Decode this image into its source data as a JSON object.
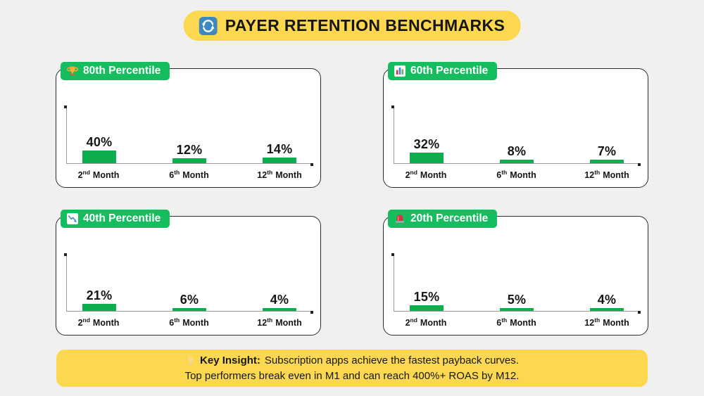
{
  "colors": {
    "background": "#F0F0EE",
    "yellow": "#FBD84F",
    "badge_green": "#15BD5F",
    "bar_green": "#0CAE4E",
    "card_border": "#2B2B2B",
    "axis": "#9B9B9B",
    "text": "#161616"
  },
  "header": {
    "title": "PAYER RETENTION BENCHMARKS",
    "icon": "counterclockwise-arrows-icon"
  },
  "panels": [
    {
      "icon": "trophy-icon",
      "title": "80th Percentile",
      "bars": [
        {
          "value": 40,
          "value_label": "40%",
          "month_number": "2",
          "month_ordinal": "nd",
          "month_word": "Month"
        },
        {
          "value": 12,
          "value_label": "12%",
          "month_number": "6",
          "month_ordinal": "th",
          "month_word": "Month"
        },
        {
          "value": 14,
          "value_label": "14%",
          "month_number": "12",
          "month_ordinal": "th",
          "month_word": "Month"
        }
      ]
    },
    {
      "icon": "bar-chart-icon",
      "title": "60th Percentile",
      "bars": [
        {
          "value": 32,
          "value_label": "32%",
          "month_number": "2",
          "month_ordinal": "nd",
          "month_word": "Month"
        },
        {
          "value": 8,
          "value_label": "8%",
          "month_number": "6",
          "month_ordinal": "th",
          "month_word": "Month"
        },
        {
          "value": 7,
          "value_label": "7%",
          "month_number": "12",
          "month_ordinal": "th",
          "month_word": "Month"
        }
      ]
    },
    {
      "icon": "chart-decreasing-icon",
      "title": "40th Percentile",
      "bars": [
        {
          "value": 21,
          "value_label": "21%",
          "month_number": "2",
          "month_ordinal": "nd",
          "month_word": "Month"
        },
        {
          "value": 6,
          "value_label": "6%",
          "month_number": "6",
          "month_ordinal": "th",
          "month_word": "Month"
        },
        {
          "value": 4,
          "value_label": "4%",
          "month_number": "12",
          "month_ordinal": "th",
          "month_word": "Month"
        }
      ]
    },
    {
      "icon": "police-light-icon",
      "title": "20th Percentile",
      "bars": [
        {
          "value": 15,
          "value_label": "15%",
          "month_number": "2",
          "month_ordinal": "nd",
          "month_word": "Month"
        },
        {
          "value": 5,
          "value_label": "5%",
          "month_number": "6",
          "month_ordinal": "th",
          "month_word": "Month"
        },
        {
          "value": 4,
          "value_label": "4%",
          "month_number": "12",
          "month_ordinal": "th",
          "month_word": "Month"
        }
      ]
    }
  ],
  "insight": {
    "icon": "light-bulb-icon",
    "label": "Key Insight:",
    "line1": "Subscription apps achieve the fastest payback curves.",
    "line2": "Top performers break even in M1 and can reach 400%+ ROAS by M12."
  },
  "chart_data": [
    {
      "type": "bar",
      "title": "80th Percentile",
      "categories": [
        "2nd Month",
        "6th Month",
        "12th Month"
      ],
      "values": [
        40,
        12,
        14
      ],
      "data_labels": [
        "40%",
        "12%",
        "14%"
      ],
      "xlabel": "",
      "ylabel": "",
      "unit": "percent",
      "grid": false,
      "legend": false,
      "bar_color": "#0CAE4E"
    },
    {
      "type": "bar",
      "title": "60th Percentile",
      "categories": [
        "2nd Month",
        "6th Month",
        "12th Month"
      ],
      "values": [
        32,
        8,
        7
      ],
      "data_labels": [
        "32%",
        "8%",
        "7%"
      ],
      "xlabel": "",
      "ylabel": "",
      "unit": "percent",
      "grid": false,
      "legend": false,
      "bar_color": "#0CAE4E"
    },
    {
      "type": "bar",
      "title": "40th Percentile",
      "categories": [
        "2nd Month",
        "6th Month",
        "12th Month"
      ],
      "values": [
        21,
        6,
        4
      ],
      "data_labels": [
        "21%",
        "6%",
        "4%"
      ],
      "xlabel": "",
      "ylabel": "",
      "unit": "percent",
      "grid": false,
      "legend": false,
      "bar_color": "#0CAE4E"
    },
    {
      "type": "bar",
      "title": "20th Percentile",
      "categories": [
        "2nd Month",
        "6th Month",
        "12th Month"
      ],
      "values": [
        15,
        5,
        4
      ],
      "data_labels": [
        "15%",
        "5%",
        "4%"
      ],
      "xlabel": "",
      "ylabel": "",
      "unit": "percent",
      "grid": false,
      "legend": false,
      "bar_color": "#0CAE4E"
    }
  ]
}
